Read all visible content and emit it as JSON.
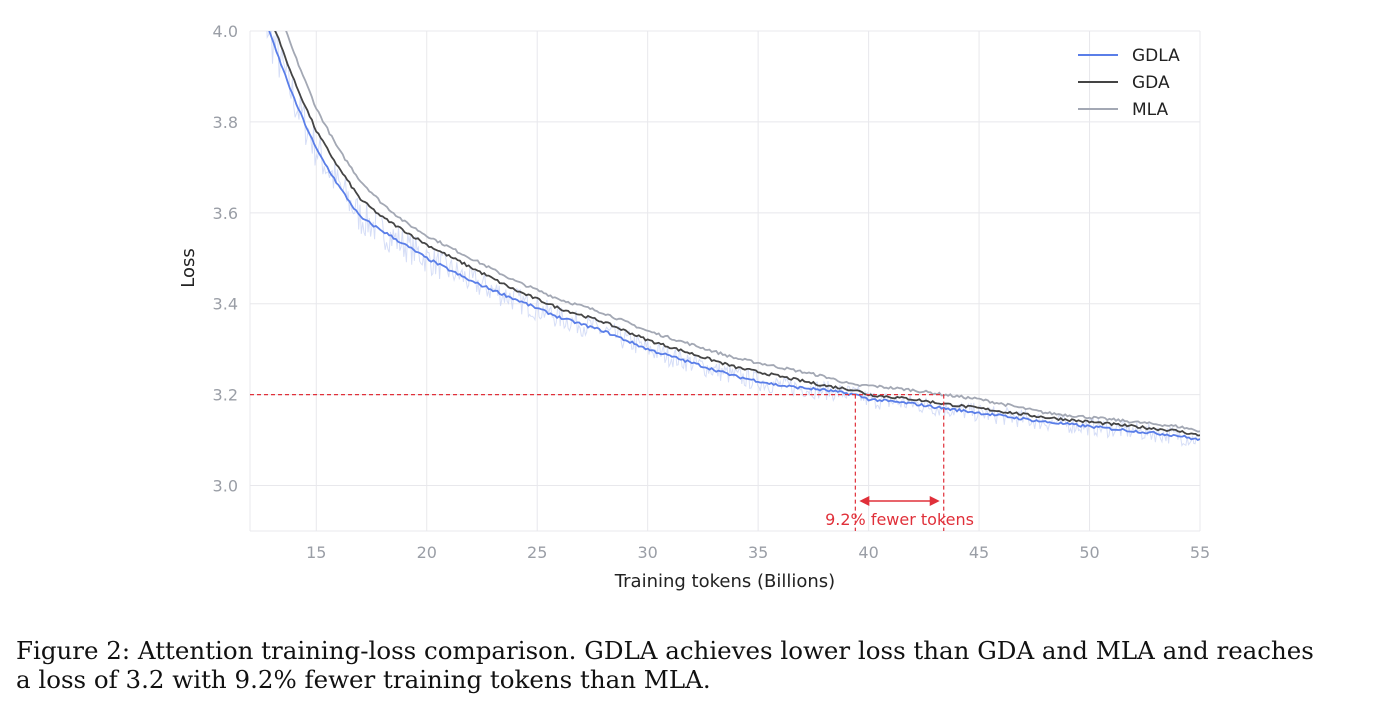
{
  "caption": {
    "line1": "Figure 2: Attention training-loss comparison. GDLA achieves lower loss than GDA and MLA and reaches",
    "line2": "a loss of 3.2 with 9.2% fewer training tokens than MLA."
  },
  "chart_data": {
    "type": "line",
    "title": "",
    "xlabel": "Training tokens (Billions)",
    "ylabel": "Loss",
    "xlim": [
      12,
      55
    ],
    "ylim": [
      2.9,
      4.0
    ],
    "xticks": [
      15,
      20,
      25,
      30,
      35,
      40,
      45,
      50,
      55
    ],
    "yticks": [
      3.0,
      3.2,
      3.4,
      3.6,
      3.8,
      4.0
    ],
    "xtick_labels": [
      "15",
      "20",
      "25",
      "30",
      "35",
      "40",
      "45",
      "50",
      "55"
    ],
    "ytick_labels": [
      "3.0",
      "3.2",
      "3.4",
      "3.6",
      "3.8",
      "4.0"
    ],
    "grid": true,
    "legend_position": "top-right",
    "x": [
      12,
      13,
      14,
      15,
      16,
      17,
      18,
      19,
      20,
      22,
      24,
      26,
      28,
      30,
      32,
      34,
      36,
      38,
      39.4,
      40,
      42,
      43.4,
      45,
      48,
      50,
      52,
      54,
      55
    ],
    "series": [
      {
        "name": "GDLA",
        "color": "#5a7ee8",
        "values": [
          4.14,
          3.98,
          3.85,
          3.74,
          3.66,
          3.59,
          3.56,
          3.53,
          3.5,
          3.45,
          3.41,
          3.37,
          3.34,
          3.3,
          3.27,
          3.24,
          3.22,
          3.21,
          3.2,
          3.19,
          3.18,
          3.17,
          3.16,
          3.14,
          3.13,
          3.12,
          3.11,
          3.1
        ]
      },
      {
        "name": "GDA",
        "color": "#444444",
        "values": [
          4.18,
          4.02,
          3.89,
          3.78,
          3.7,
          3.63,
          3.59,
          3.56,
          3.53,
          3.48,
          3.43,
          3.39,
          3.36,
          3.32,
          3.29,
          3.26,
          3.24,
          3.22,
          3.21,
          3.2,
          3.19,
          3.18,
          3.17,
          3.15,
          3.14,
          3.13,
          3.12,
          3.11
        ]
      },
      {
        "name": "MLA",
        "color": "#a3a8b4",
        "values": [
          4.24,
          4.08,
          3.95,
          3.83,
          3.74,
          3.67,
          3.62,
          3.58,
          3.55,
          3.5,
          3.45,
          3.41,
          3.38,
          3.34,
          3.31,
          3.28,
          3.26,
          3.24,
          3.22,
          3.22,
          3.21,
          3.2,
          3.19,
          3.16,
          3.15,
          3.14,
          3.13,
          3.12
        ]
      }
    ],
    "annotations": {
      "reference_loss": 3.2,
      "gdla_tokens_at_ref": 39.4,
      "mla_tokens_at_ref": 43.4,
      "text": "9.2% fewer tokens",
      "color": "#e0303a"
    }
  }
}
